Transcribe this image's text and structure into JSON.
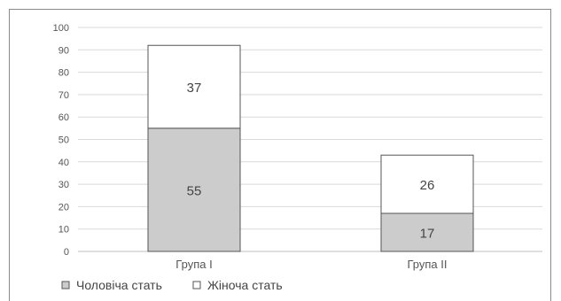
{
  "chart_data": {
    "type": "bar",
    "stacked": true,
    "categories": [
      "Група I",
      "Група II"
    ],
    "series": [
      {
        "name": "Чоловіча стать",
        "values": [
          55,
          17
        ],
        "color": "#cccccc"
      },
      {
        "name": "Жіноча стать",
        "values": [
          37,
          26
        ],
        "color": "#ffffff"
      }
    ],
    "ylim": [
      0,
      100
    ],
    "yticks": [
      "0",
      "10",
      "20",
      "30",
      "40",
      "50",
      "60",
      "70",
      "80",
      "90",
      "100"
    ],
    "grid": true,
    "legend_position": "bottom-left",
    "colors": {
      "grid": "#d9d9d9",
      "bar_stroke": "#555555",
      "axis": "#bfbfbf"
    }
  }
}
